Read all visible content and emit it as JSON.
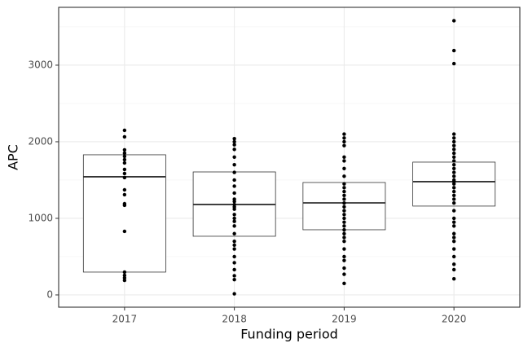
{
  "chart_data": {
    "type": "box",
    "x_label": "Funding period",
    "y_label": "APC",
    "categories": [
      "2017",
      "2018",
      "2019",
      "2020"
    ],
    "q1": [
      298,
      766,
      851,
      1160
    ],
    "median": [
      1543,
      1181,
      1202,
      1479
    ],
    "q3": [
      1830,
      1606,
      1468,
      1734
    ],
    "points": [
      [
        2149,
        2064,
        1894,
        1851,
        1809,
        1766,
        1723,
        1638,
        1585,
        1532,
        1372,
        1309,
        1191,
        1170,
        830,
        298,
        255,
        223,
        191
      ],
      [
        2040,
        2000,
        1960,
        1900,
        1800,
        1700,
        1600,
        1500,
        1420,
        1330,
        1250,
        1220,
        1180,
        1150,
        1120,
        1050,
        1000,
        960,
        900,
        800,
        700,
        650,
        600,
        500,
        420,
        330,
        250,
        200,
        15
      ],
      [
        2100,
        2050,
        2000,
        1950,
        1800,
        1750,
        1650,
        1550,
        1450,
        1400,
        1350,
        1300,
        1250,
        1200,
        1150,
        1100,
        1050,
        1000,
        950,
        900,
        850,
        800,
        750,
        700,
        600,
        500,
        450,
        350,
        270,
        150
      ],
      [
        3580,
        3190,
        3020,
        2100,
        2050,
        2000,
        1950,
        1900,
        1850,
        1800,
        1750,
        1700,
        1650,
        1600,
        1550,
        1500,
        1480,
        1450,
        1400,
        1350,
        1300,
        1250,
        1200,
        1100,
        1000,
        950,
        900,
        800,
        750,
        700,
        600,
        500,
        400,
        330,
        210
      ]
    ],
    "ylim": [
      -160,
      3755
    ],
    "yticks": [
      0,
      1000,
      2000,
      3000
    ],
    "minor_yticks": [
      500,
      1500,
      2500,
      3500
    ],
    "grid": true,
    "color": "#000000"
  }
}
